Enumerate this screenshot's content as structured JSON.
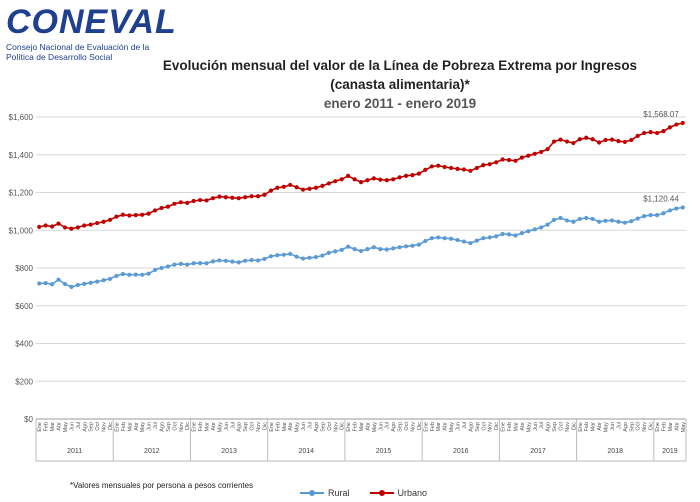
{
  "header": {
    "logo_text": "CONEVAL",
    "logo_subtitle": "Consejo Nacional de Evaluación de la Política de Desarrollo Social",
    "title_line1": "Evolución mensual del valor de la Línea de Pobreza Extrema por Ingresos",
    "title_line2": "(canasta alimentaria)*",
    "title_line3": "enero 2011 - enero 2019"
  },
  "footnote": "*Valores mensuales por persona a pesos corrientes",
  "colors": {
    "rural": "#5b9bd5",
    "urbano": "#c00000",
    "logo": "#1f3f8f"
  },
  "chart_data": {
    "type": "line",
    "title": "Evolución mensual del valor de la Línea de Pobreza Extrema por Ingresos (canasta alimentaria)*",
    "subtitle": "enero 2011 - enero 2019",
    "ylim": [
      0,
      1600
    ],
    "yticks": [
      "$0",
      "$200",
      "$400",
      "$600",
      "$800",
      "$1,000",
      "$1,200",
      "$1,400",
      "$1,600"
    ],
    "ytick_values": [
      0,
      200,
      400,
      600,
      800,
      1000,
      1200,
      1400,
      1600
    ],
    "month_labels": [
      "Ene",
      "Feb",
      "Mar",
      "Abr",
      "May",
      "Jun",
      "Jul",
      "Ago",
      "Sep",
      "Oct",
      "Nov",
      "Dic"
    ],
    "years": [
      "2011",
      "2012",
      "2013",
      "2014",
      "2015",
      "2016",
      "2017",
      "2018",
      "2019"
    ],
    "grid": true,
    "legend_position": "bottom",
    "series": [
      {
        "name": "Rural",
        "end_label": "$1,120.44",
        "values": [
          718,
          720,
          714,
          738,
          715,
          700,
          710,
          716,
          722,
          728,
          735,
          742,
          758,
          768,
          764,
          765,
          764,
          770,
          790,
          800,
          808,
          818,
          822,
          818,
          825,
          826,
          825,
          835,
          840,
          838,
          834,
          830,
          838,
          842,
          840,
          848,
          862,
          868,
          870,
          875,
          860,
          850,
          854,
          858,
          866,
          880,
          888,
          896,
          913,
          900,
          890,
          900,
          910,
          900,
          898,
          904,
          910,
          915,
          918,
          924,
          943,
          958,
          962,
          958,
          955,
          948,
          940,
          932,
          945,
          958,
          962,
          968,
          980,
          978,
          972,
          985,
          995,
          1005,
          1015,
          1030,
          1055,
          1065,
          1052,
          1045,
          1060,
          1065,
          1060,
          1045,
          1050,
          1052,
          1045,
          1040,
          1048,
          1062,
          1075,
          1080,
          1080,
          1090,
          1105,
          1115,
          1120.44
        ]
      },
      {
        "name": "Urbano",
        "end_label": "$1,568.07",
        "values": [
          1018,
          1025,
          1020,
          1035,
          1015,
          1008,
          1015,
          1025,
          1030,
          1038,
          1045,
          1055,
          1072,
          1082,
          1078,
          1080,
          1082,
          1088,
          1105,
          1118,
          1125,
          1140,
          1148,
          1145,
          1155,
          1160,
          1158,
          1170,
          1178,
          1175,
          1172,
          1170,
          1175,
          1180,
          1180,
          1188,
          1210,
          1225,
          1230,
          1240,
          1228,
          1215,
          1220,
          1225,
          1235,
          1248,
          1260,
          1270,
          1288,
          1270,
          1255,
          1265,
          1275,
          1268,
          1265,
          1270,
          1280,
          1288,
          1292,
          1300,
          1320,
          1338,
          1342,
          1335,
          1330,
          1325,
          1322,
          1315,
          1330,
          1345,
          1350,
          1360,
          1375,
          1372,
          1368,
          1385,
          1395,
          1405,
          1415,
          1430,
          1470,
          1480,
          1470,
          1462,
          1482,
          1490,
          1482,
          1465,
          1478,
          1480,
          1472,
          1468,
          1478,
          1500,
          1515,
          1520,
          1515,
          1525,
          1545,
          1560,
          1568.07
        ]
      }
    ]
  }
}
